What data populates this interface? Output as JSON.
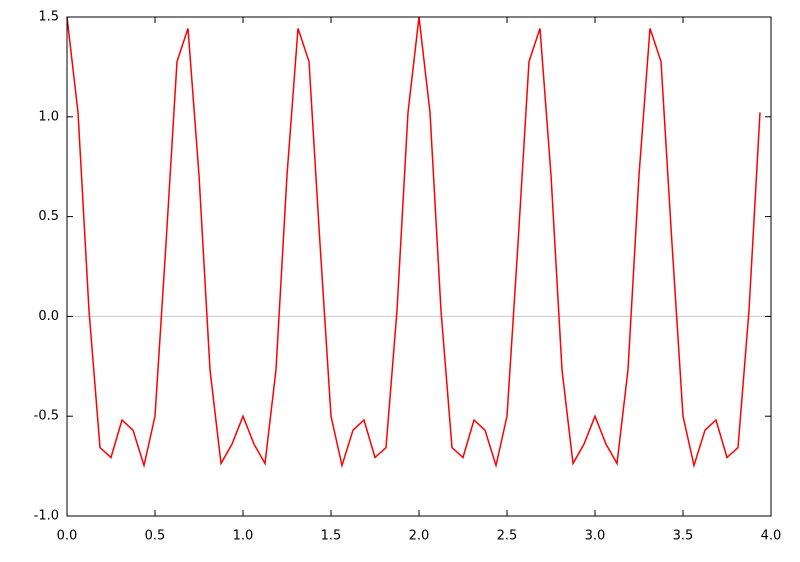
{
  "chart_data": {
    "type": "line",
    "x": [
      0,
      0.0625,
      0.125,
      0.1875,
      0.25,
      0.3125,
      0.375,
      0.4375,
      0.5,
      0.5625,
      0.625,
      0.6875,
      0.75,
      0.8125,
      0.875,
      0.9375,
      1,
      1.0625,
      1.125,
      1.1875,
      1.25,
      1.3125,
      1.375,
      1.4375,
      1.5,
      1.5625,
      1.625,
      1.6875,
      1.75,
      1.8125,
      1.875,
      1.9375,
      2,
      2.0625,
      2.125,
      2.1875,
      2.25,
      2.3125,
      2.375,
      2.4375,
      2.5,
      2.5625,
      2.625,
      2.6875,
      2.75,
      2.8125,
      2.875,
      2.9375,
      3,
      3.0625,
      3.125,
      3.1875,
      3.25,
      3.3125,
      3.375,
      3.4375,
      3.5,
      3.5625,
      3.625,
      3.6875,
      3.75,
      3.8125,
      3.875,
      3.9375
    ],
    "values": [
      1.5,
      1.022,
      0.029,
      -0.657,
      -0.707,
      -0.519,
      -0.57,
      -0.747,
      -0.5,
      0.364,
      1.277,
      1.443,
      0.707,
      -0.267,
      -0.737,
      -0.64,
      -0.5,
      -0.64,
      -0.737,
      -0.267,
      0.707,
      1.443,
      1.277,
      0.364,
      -0.5,
      -0.747,
      -0.57,
      -0.519,
      -0.707,
      -0.657,
      0.029,
      1.022,
      1.5,
      1.022,
      0.029,
      -0.657,
      -0.707,
      -0.519,
      -0.57,
      -0.747,
      -0.5,
      0.364,
      1.277,
      1.443,
      0.707,
      -0.267,
      -0.737,
      -0.64,
      -0.5,
      -0.64,
      -0.737,
      -0.267,
      0.707,
      1.443,
      1.277,
      0.364,
      -0.5,
      -0.747,
      -0.57,
      -0.519,
      -0.707,
      -0.657,
      0.029,
      1.022
    ],
    "color": "#ff0000",
    "xlim": [
      0,
      4
    ],
    "xticks": [
      {
        "value": 0,
        "label": "0.0"
      },
      {
        "value": 0.5,
        "label": "0.5"
      },
      {
        "value": 1,
        "label": "1.0"
      },
      {
        "value": 1.5,
        "label": "1.5"
      },
      {
        "value": 2,
        "label": "2.0"
      },
      {
        "value": 2.5,
        "label": "2.5"
      },
      {
        "value": 3,
        "label": "3.0"
      },
      {
        "value": 3.5,
        "label": "3.5"
      },
      {
        "value": 4,
        "label": "4.0"
      }
    ],
    "ylim": [
      -1,
      1.5
    ],
    "yticks": [
      {
        "value": -1,
        "label": "-1.0"
      },
      {
        "value": -0.5,
        "label": "-0.5"
      },
      {
        "value": 0,
        "label": "0.0"
      },
      {
        "value": 0.5,
        "label": "0.5"
      },
      {
        "value": 1,
        "label": "1.0"
      },
      {
        "value": 1.5,
        "label": "1.5"
      }
    ],
    "zero_line": true
  }
}
